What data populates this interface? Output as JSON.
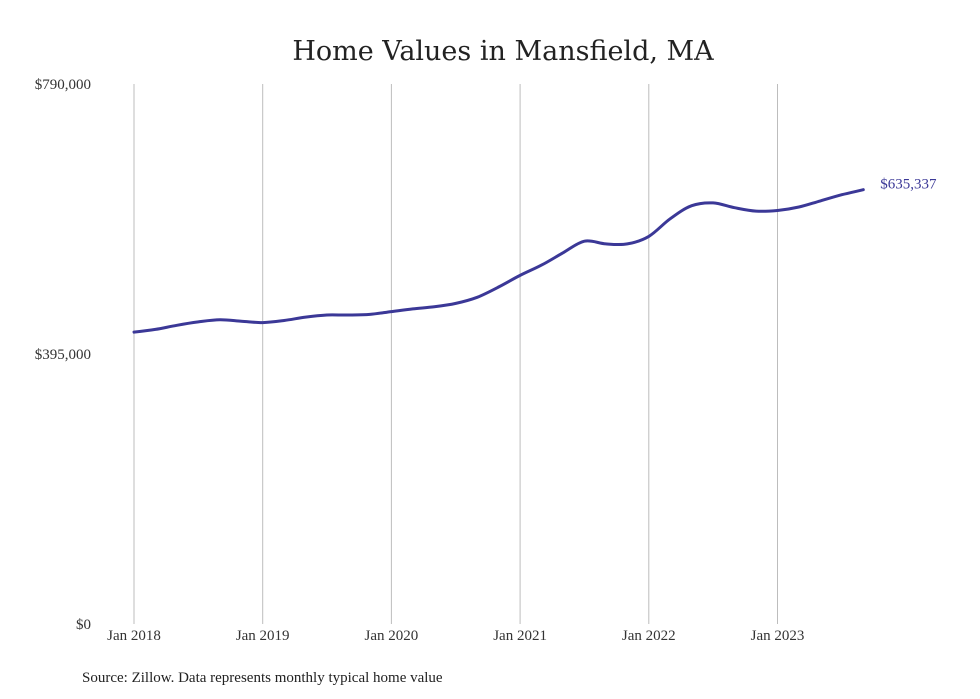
{
  "chart_data": {
    "type": "line",
    "title": "Home Values in Mansfield, MA",
    "xlabel": "",
    "ylabel": "",
    "ylim": [
      0,
      790000
    ],
    "y_ticks": [
      "$0",
      "$395,000",
      "$790,000"
    ],
    "x_ticks": [
      "Jan 2018",
      "Jan 2019",
      "Jan 2020",
      "Jan 2021",
      "Jan 2022",
      "Jan 2023"
    ],
    "grid": "vertical",
    "legend": "none",
    "end_label": "$635,337",
    "series": [
      {
        "color": "#3b3897",
        "points": [
          [
            "2018-01",
            427000
          ],
          [
            "2018-03",
            431000
          ],
          [
            "2018-05",
            437000
          ],
          [
            "2018-07",
            442000
          ],
          [
            "2018-09",
            445000
          ],
          [
            "2018-11",
            443000
          ],
          [
            "2019-01",
            441000
          ],
          [
            "2019-03",
            444000
          ],
          [
            "2019-05",
            449000
          ],
          [
            "2019-07",
            452000
          ],
          [
            "2019-09",
            452000
          ],
          [
            "2019-11",
            453000
          ],
          [
            "2020-01",
            457000
          ],
          [
            "2020-03",
            461000
          ],
          [
            "2020-05",
            464000
          ],
          [
            "2020-07",
            469000
          ],
          [
            "2020-09",
            478000
          ],
          [
            "2020-11",
            493000
          ],
          [
            "2021-01",
            510000
          ],
          [
            "2021-03",
            525000
          ],
          [
            "2021-05",
            543000
          ],
          [
            "2021-07",
            560000
          ],
          [
            "2021-09",
            556000
          ],
          [
            "2021-11",
            556000
          ],
          [
            "2022-01",
            567000
          ],
          [
            "2022-03",
            593000
          ],
          [
            "2022-05",
            612000
          ],
          [
            "2022-07",
            616000
          ],
          [
            "2022-09",
            609000
          ],
          [
            "2022-11",
            604000
          ],
          [
            "2023-01",
            605000
          ],
          [
            "2023-03",
            610000
          ],
          [
            "2023-05",
            619000
          ],
          [
            "2023-07",
            628000
          ],
          [
            "2023-09",
            635337
          ]
        ]
      }
    ]
  },
  "source": "Source: Zillow. Data represents monthly typical home value"
}
